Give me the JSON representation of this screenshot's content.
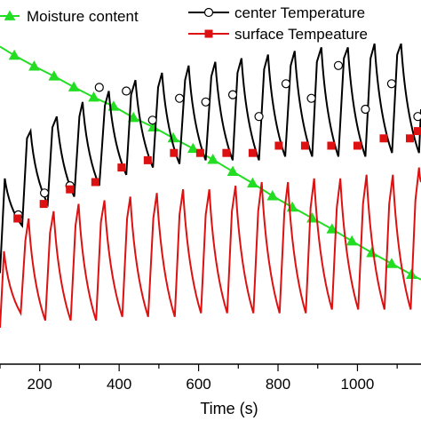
{
  "chart_data": {
    "type": "line",
    "xlabel": "Time (s)",
    "xlim": [
      100,
      1160
    ],
    "x_ticks": [
      "200",
      "400",
      "600",
      "800",
      "1000"
    ],
    "x_tick_values": [
      200,
      400,
      600,
      800,
      1000
    ],
    "ylim": [
      0,
      1
    ],
    "series": [
      {
        "name": "Moisture content",
        "color": "#22dd22",
        "marker": "triangle",
        "x": [
          100,
          136,
          186,
          236,
          286,
          336,
          386,
          436,
          486,
          536,
          586,
          636,
          686,
          736,
          786,
          836,
          886,
          936,
          986,
          1036,
          1086,
          1136,
          1160
        ],
        "y": [
          0.872,
          0.848,
          0.818,
          0.791,
          0.761,
          0.733,
          0.708,
          0.677,
          0.651,
          0.621,
          0.592,
          0.562,
          0.529,
          0.497,
          0.462,
          0.431,
          0.401,
          0.371,
          0.338,
          0.306,
          0.276,
          0.246,
          0.232
        ]
      },
      {
        "name": "center Temperature",
        "color": "#000000",
        "marker": "circle",
        "cycles": [
          {
            "x": [
              100,
              112,
              156
            ],
            "y": [
              0.25,
              0.51,
              0.38
            ]
          },
          {
            "x": [
              168,
              177,
              220
            ],
            "y": [
              0.62,
              0.64,
              0.44
            ]
          },
          {
            "x": [
              232,
              243,
              287
            ],
            "y": [
              0.65,
              0.68,
              0.46
            ]
          },
          {
            "x": [
              300,
              308,
              350
            ],
            "y": [
              0.68,
              0.72,
              0.49
            ]
          },
          {
            "x": [
              364,
              374,
              418
            ],
            "y": [
              0.71,
              0.75,
              0.52
            ]
          },
          {
            "x": [
              430,
              441,
              485
            ],
            "y": [
              0.74,
              0.78,
              0.54
            ]
          },
          {
            "x": [
              498,
              508,
              552
            ],
            "y": [
              0.76,
              0.8,
              0.55
            ]
          },
          {
            "x": [
              566,
              575,
              618
            ],
            "y": [
              0.78,
              0.82,
              0.56
            ]
          },
          {
            "x": [
              632,
              642,
              686
            ],
            "y": [
              0.79,
              0.83,
              0.56
            ]
          },
          {
            "x": [
              698,
              708,
              752
            ],
            "y": [
              0.8,
              0.84,
              0.56
            ]
          },
          {
            "x": [
              765,
              775,
              818
            ],
            "y": [
              0.81,
              0.85,
              0.57
            ]
          },
          {
            "x": [
              832,
              842,
              886
            ],
            "y": [
              0.82,
              0.86,
              0.57
            ]
          },
          {
            "x": [
              898,
              909,
              952
            ],
            "y": [
              0.83,
              0.87,
              0.57
            ]
          },
          {
            "x": [
              966,
              976,
              1020
            ],
            "y": [
              0.84,
              0.87,
              0.57
            ]
          },
          {
            "x": [
              1033,
              1043,
              1087
            ],
            "y": [
              0.84,
              0.88,
              0.58
            ]
          },
          {
            "x": [
              1100,
              1110,
              1155
            ],
            "y": [
              0.85,
              0.88,
              0.58
            ]
          },
          {
            "x": [
              1160
            ],
            "y": [
              0.7
            ]
          }
        ],
        "markers_x": [
          146,
          212,
          276,
          350,
          418,
          484,
          552,
          618,
          686,
          752,
          820,
          884,
          952,
          1020,
          1086,
          1152
        ],
        "markers_y": [
          0.41,
          0.47,
          0.49,
          0.76,
          0.75,
          0.67,
          0.73,
          0.72,
          0.74,
          0.68,
          0.77,
          0.73,
          0.82,
          0.7,
          0.77,
          0.68
        ]
      },
      {
        "name": "surface Tempeature",
        "color": "#dd1111",
        "marker": "square",
        "cycles": [
          {
            "x": [
              100,
              110,
              152
            ],
            "y": [
              0.1,
              0.31,
              0.14
            ]
          },
          {
            "x": [
              164,
              172,
              214
            ],
            "y": [
              0.34,
              0.4,
              0.12
            ]
          },
          {
            "x": [
              226,
              235,
              278
            ],
            "y": [
              0.36,
              0.42,
              0.12
            ]
          },
          {
            "x": [
              290,
              298,
              342
            ],
            "y": [
              0.38,
              0.44,
              0.12
            ]
          },
          {
            "x": [
              354,
              363,
              408
            ],
            "y": [
              0.39,
              0.45,
              0.13
            ]
          },
          {
            "x": [
              420,
              428,
              473
            ],
            "y": [
              0.4,
              0.46,
              0.13
            ]
          },
          {
            "x": [
              486,
              495,
              540
            ],
            "y": [
              0.4,
              0.47,
              0.13
            ]
          },
          {
            "x": [
              552,
              561,
              606
            ],
            "y": [
              0.41,
              0.48,
              0.14
            ]
          },
          {
            "x": [
              618,
              627,
              672
            ],
            "y": [
              0.41,
              0.48,
              0.14
            ]
          },
          {
            "x": [
              684,
              693,
              738
            ],
            "y": [
              0.42,
              0.49,
              0.14
            ]
          },
          {
            "x": [
              750,
              759,
              804
            ],
            "y": [
              0.42,
              0.5,
              0.14
            ]
          },
          {
            "x": [
              816,
              825,
              870
            ],
            "y": [
              0.42,
              0.5,
              0.14
            ]
          },
          {
            "x": [
              882,
              891,
              936
            ],
            "y": [
              0.43,
              0.51,
              0.15
            ]
          },
          {
            "x": [
              948,
              957,
              1002
            ],
            "y": [
              0.43,
              0.51,
              0.15
            ]
          },
          {
            "x": [
              1014,
              1023,
              1068
            ],
            "y": [
              0.44,
              0.52,
              0.15
            ]
          },
          {
            "x": [
              1080,
              1089,
              1134
            ],
            "y": [
              0.44,
              0.52,
              0.15
            ]
          },
          {
            "x": [
              1146,
              1155,
              1160
            ],
            "y": [
              0.45,
              0.54,
              0.5
            ]
          }
        ],
        "markers_x": [
          144,
          210,
          276,
          340,
          406,
          472,
          538,
          604,
          670,
          736,
          802,
          868,
          934,
          1000,
          1066,
          1132,
          1152
        ],
        "markers_y": [
          0.4,
          0.44,
          0.48,
          0.5,
          0.54,
          0.56,
          0.58,
          0.58,
          0.58,
          0.58,
          0.6,
          0.6,
          0.6,
          0.6,
          0.62,
          0.62,
          0.64
        ]
      }
    ],
    "legend": [
      {
        "label": "Moisture content",
        "marker": "triangle",
        "color": "#22dd22"
      },
      {
        "label": "center Temperature",
        "marker": "circle",
        "color": "#000000"
      },
      {
        "label": "surface Tempeature",
        "marker": "square",
        "color": "#dd1111"
      }
    ],
    "grid": false,
    "legend_position": "top"
  }
}
